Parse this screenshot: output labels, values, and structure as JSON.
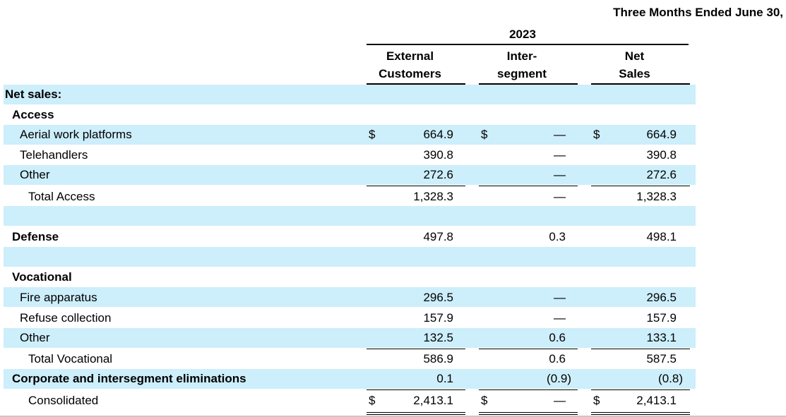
{
  "header": {
    "period": "Three Months Ended June 30,",
    "year": "2023",
    "columns": {
      "external": [
        "External",
        "Customers"
      ],
      "inter": [
        "Inter-",
        "segment"
      ],
      "net": [
        "Net",
        "Sales"
      ]
    }
  },
  "currency_symbol": "$",
  "rows": [
    {
      "label": "Net sales:",
      "external": "",
      "inter": "",
      "net": ""
    },
    {
      "label": "Access",
      "external": "",
      "inter": "",
      "net": ""
    },
    {
      "label": "Aerial work platforms",
      "external": "664.9",
      "inter": "—",
      "net": "664.9"
    },
    {
      "label": "Telehandlers",
      "external": "390.8",
      "inter": "—",
      "net": "390.8"
    },
    {
      "label": "Other",
      "external": "272.6",
      "inter": "—",
      "net": "272.6"
    },
    {
      "label": "Total Access",
      "external": "1,328.3",
      "inter": "—",
      "net": "1,328.3"
    },
    {
      "label": "",
      "external": "",
      "inter": "",
      "net": ""
    },
    {
      "label": "Defense",
      "external": "497.8",
      "inter": "0.3",
      "net": "498.1"
    },
    {
      "label": "",
      "external": "",
      "inter": "",
      "net": ""
    },
    {
      "label": "Vocational",
      "external": "",
      "inter": "",
      "net": ""
    },
    {
      "label": "Fire apparatus",
      "external": "296.5",
      "inter": "—",
      "net": "296.5"
    },
    {
      "label": "Refuse collection",
      "external": "157.9",
      "inter": "—",
      "net": "157.9"
    },
    {
      "label": "Other",
      "external": "132.5",
      "inter": "0.6",
      "net": "133.1"
    },
    {
      "label": "Total Vocational",
      "external": "586.9",
      "inter": "0.6",
      "net": "587.5"
    },
    {
      "label": "Corporate and intersegment eliminations",
      "external": "0.1",
      "inter": "(0.9)",
      "net": "(0.8)"
    },
    {
      "label": "Consolidated",
      "external": "2,413.1",
      "inter": "—",
      "net": "2,413.1"
    }
  ]
}
